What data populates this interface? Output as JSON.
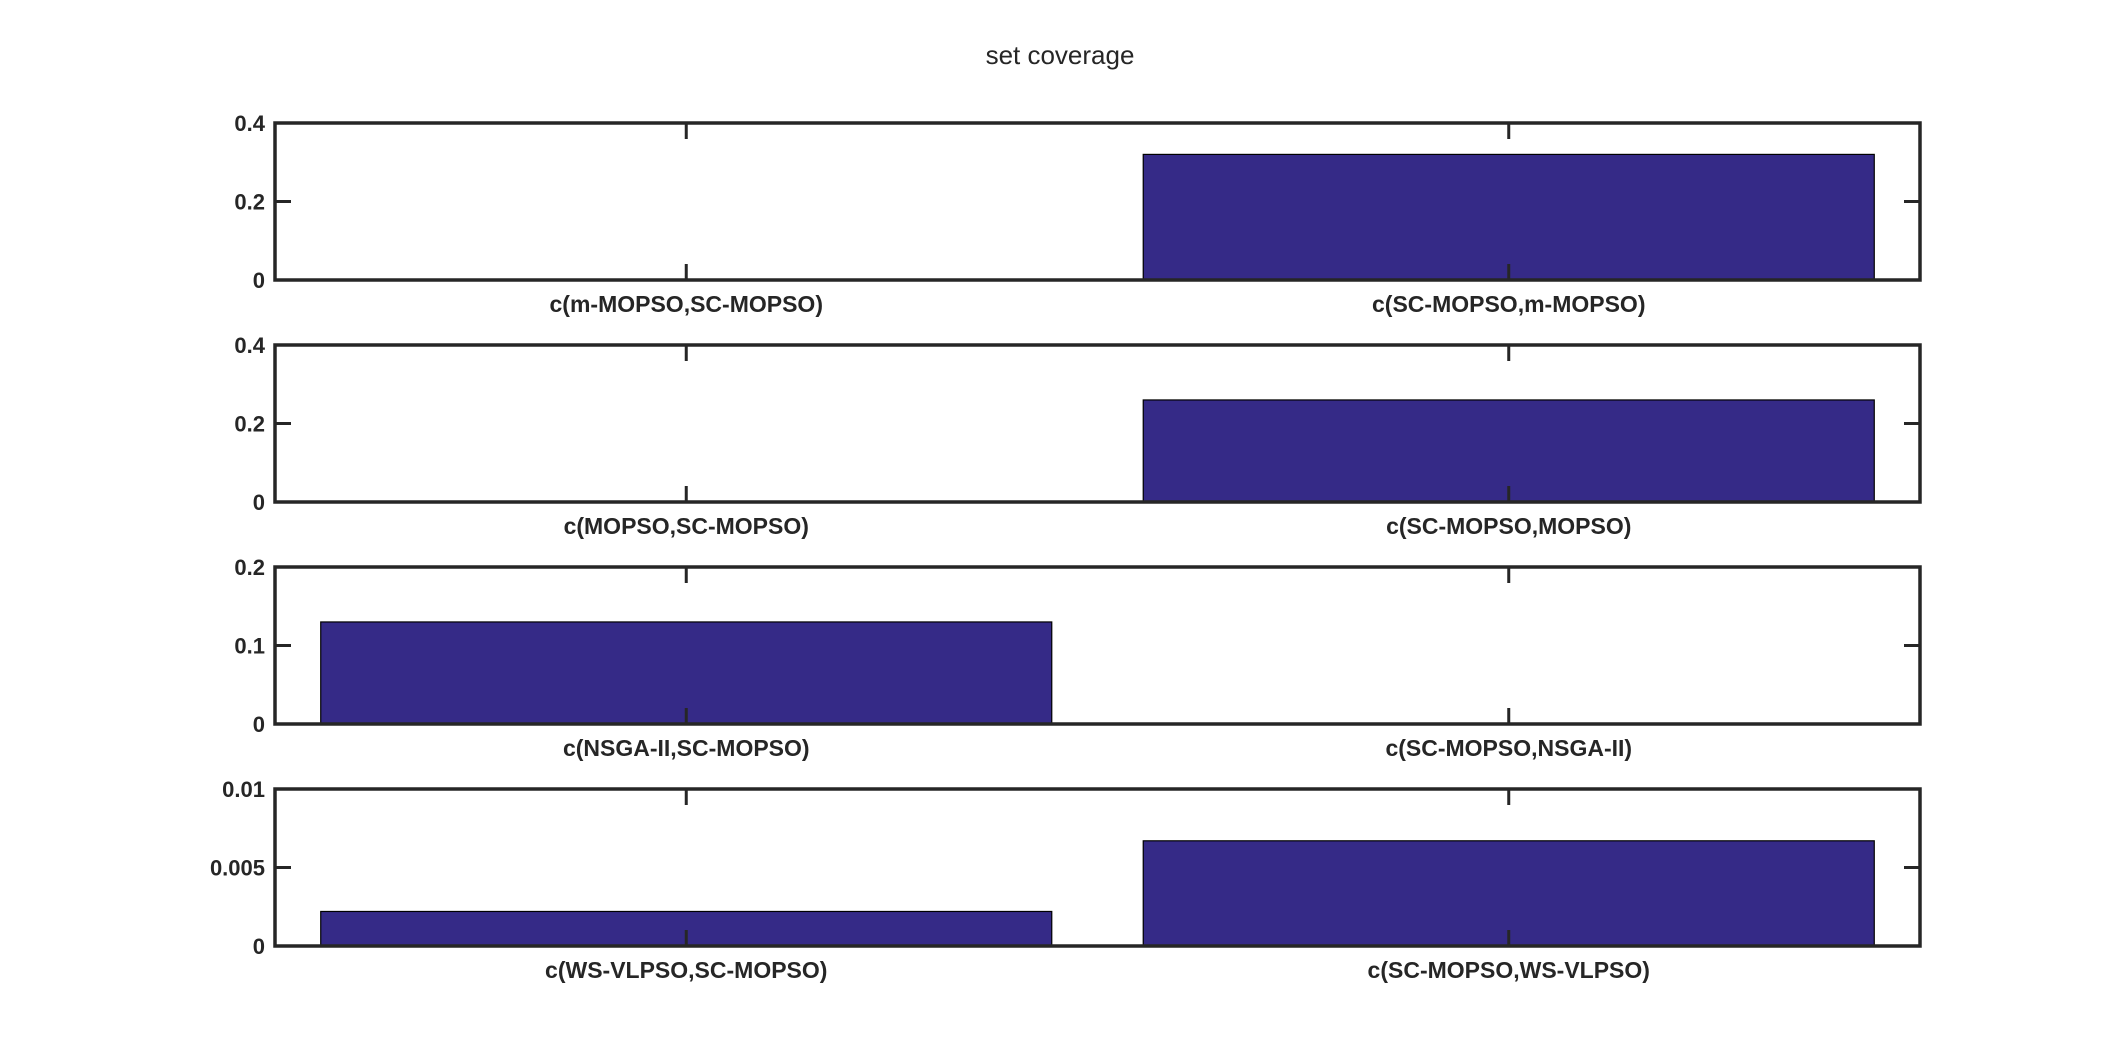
{
  "figure_title": "set coverage",
  "colors": {
    "bar_fill": "#352a87",
    "bar_edge": "#000000",
    "axes": "#262626",
    "background": "#ffffff"
  },
  "chart_data": [
    {
      "type": "bar",
      "title": "",
      "categories": [
        "c(m-MOPSO,SC-MOPSO)",
        "c(SC-MOPSO,m-MOPSO)"
      ],
      "values": [
        0,
        0.32
      ],
      "ylim": [
        0,
        0.4
      ],
      "yticks": [
        "0",
        "0.2",
        "0.4"
      ],
      "ytick_values": [
        0,
        0.2,
        0.4
      ],
      "xlabel": "",
      "ylabel": "",
      "grid": false
    },
    {
      "type": "bar",
      "title": "",
      "categories": [
        "c(MOPSO,SC-MOPSO)",
        "c(SC-MOPSO,MOPSO)"
      ],
      "values": [
        0,
        0.26
      ],
      "ylim": [
        0,
        0.4
      ],
      "yticks": [
        "0",
        "0.2",
        "0.4"
      ],
      "ytick_values": [
        0,
        0.2,
        0.4
      ],
      "xlabel": "",
      "ylabel": "",
      "grid": false
    },
    {
      "type": "bar",
      "title": "",
      "categories": [
        "c(NSGA-II,SC-MOPSO)",
        "c(SC-MOPSO,NSGA-II)"
      ],
      "values": [
        0.13,
        0
      ],
      "ylim": [
        0,
        0.2
      ],
      "yticks": [
        "0",
        "0.1",
        "0.2"
      ],
      "ytick_values": [
        0,
        0.1,
        0.2
      ],
      "xlabel": "",
      "ylabel": "",
      "grid": false
    },
    {
      "type": "bar",
      "title": "",
      "categories": [
        "c(WS-VLPSO,SC-MOPSO)",
        "c(SC-MOPSO,WS-VLPSO)"
      ],
      "values": [
        0.0022,
        0.0067
      ],
      "ylim": [
        0,
        0.01
      ],
      "yticks": [
        "0",
        "0.005",
        "0.01"
      ],
      "ytick_values": [
        0,
        0.005,
        0.01
      ],
      "xlabel": "",
      "ylabel": "",
      "grid": false
    }
  ]
}
